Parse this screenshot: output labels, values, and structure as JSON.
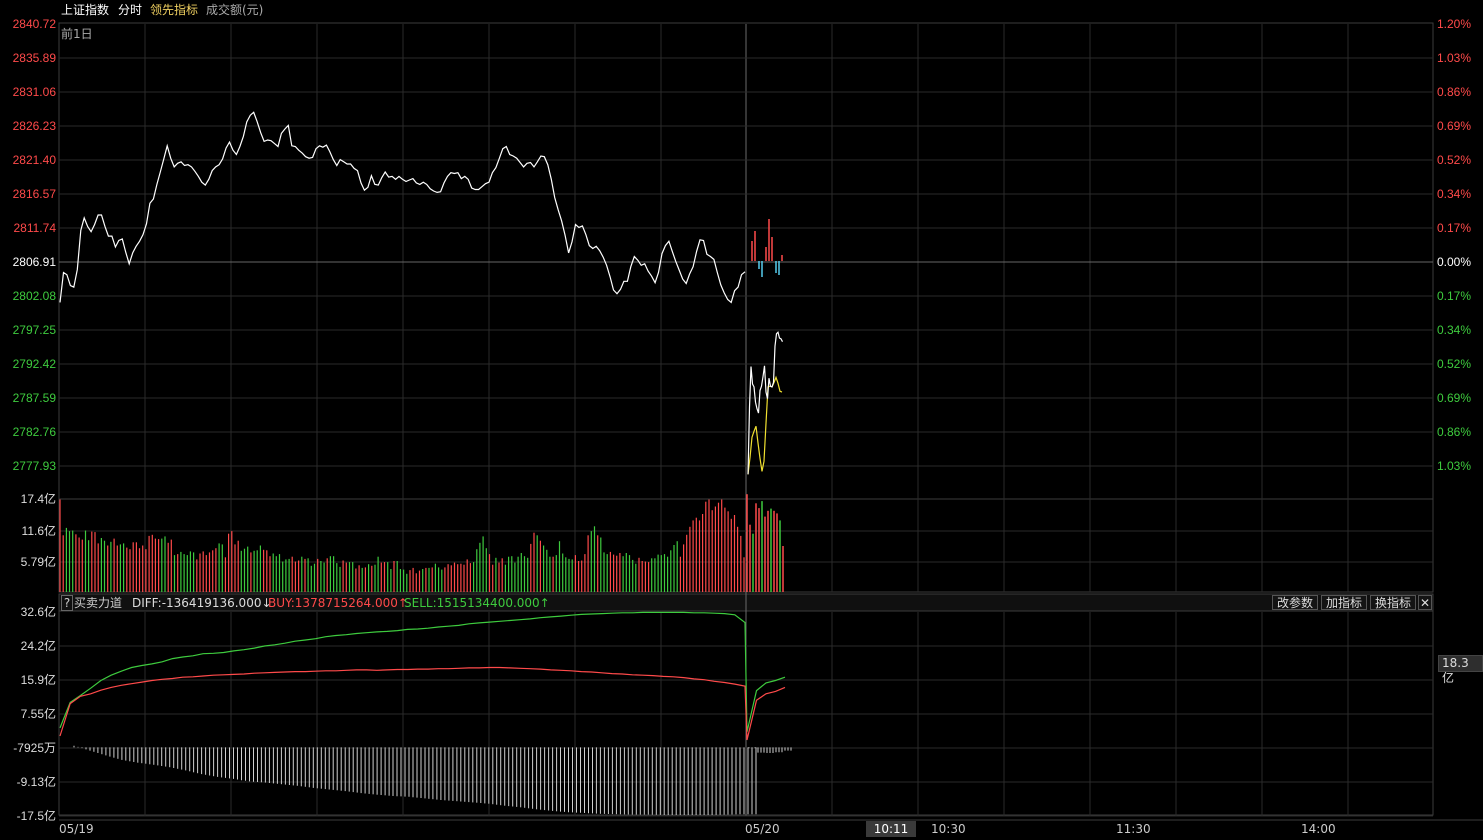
{
  "header": {
    "index_name": "上证指数",
    "tab_timeshare": "分时",
    "tab_leading": "领先指标",
    "tab_turnover": "成交额(元)",
    "prev_day": "前1日"
  },
  "colors": {
    "up": "#ff4a4a",
    "down": "#3ecb3e",
    "price_line": "#ffffff",
    "avg_line": "#f0e030",
    "grid": "#2a2a2a"
  },
  "price_axis": {
    "left": [
      "2840.72",
      "2835.89",
      "2831.06",
      "2826.23",
      "2821.40",
      "2816.57",
      "2811.74",
      "2806.91",
      "2802.08",
      "2797.25",
      "2792.42",
      "2787.59",
      "2782.76",
      "2777.93"
    ],
    "right": [
      "1.20%",
      "1.03%",
      "0.86%",
      "0.69%",
      "0.52%",
      "0.34%",
      "0.17%",
      "0.00%",
      "0.17%",
      "0.34%",
      "0.52%",
      "0.69%",
      "0.86%",
      "1.03%"
    ],
    "pre_close": 2806.91
  },
  "volume_axis": [
    "17.4亿",
    "11.6亿",
    "5.79亿"
  ],
  "indicator": {
    "help": "?",
    "name": "买卖力道",
    "diff": "DIFF:-136419136.000↓",
    "buy": "BUY:1378715264.000↑",
    "sell": "SELL:1515134400.000↑",
    "axis": [
      "32.6亿",
      "24.2亿",
      "15.9亿",
      "7.55亿",
      "-7925万",
      "-9.13亿",
      "-17.5亿"
    ],
    "right_value": "18.3亿",
    "btn_params": "改参数",
    "btn_add": "加指标",
    "btn_switch": "换指标",
    "btn_close": "✕"
  },
  "time_axis": {
    "day1": "05/19",
    "day2": "05/20",
    "cursor": "10:11",
    "t1": "10:30",
    "t2": "11:30",
    "t3": "14:00"
  },
  "chart_data": [
    {
      "type": "line",
      "title": "上证指数",
      "ylim": [
        2775.51,
        2840.72
      ],
      "series": [
        {
          "name": "",
          "values": [
            2802.5,
            2806.6,
            2806.3,
            2804.8,
            2804.6,
            2807.0,
            2812.4,
            2814.1,
            2812.9,
            2812.2,
            2813.2,
            2814.5,
            2814.5,
            2812.9,
            2811.6,
            2811.6,
            2810.1,
            2811.0,
            2811.2,
            2809.4,
            2807.8,
            2809.3,
            2810.2,
            2810.9,
            2811.8,
            2813.3,
            2816.1,
            2816.7,
            2818.7,
            2820.4,
            2822.2,
            2824.0,
            2822.3,
            2821.1,
            2821.6,
            2821.8,
            2821.3,
            2821.4,
            2821.1,
            2820.5,
            2819.8,
            2819.0,
            2818.6,
            2819.4,
            2820.6,
            2821.1,
            2821.4,
            2822.2,
            2823.7,
            2824.5,
            2823.4,
            2822.8,
            2823.9,
            2825.3,
            2827.3,
            2828.2,
            2828.6,
            2827.3,
            2825.8,
            2824.6,
            2824.8,
            2824.7,
            2824.3,
            2823.9,
            2825.7,
            2826.3,
            2826.8,
            2824.0,
            2823.9,
            2823.4,
            2823.0,
            2822.5,
            2822.3,
            2822.4,
            2823.6,
            2824.0,
            2823.8,
            2824.1,
            2823.2,
            2822.1,
            2821.3,
            2822.1,
            2821.8,
            2821.5,
            2821.5,
            2820.9,
            2820.6,
            2818.9,
            2817.9,
            2818.3,
            2819.9,
            2818.7,
            2818.6,
            2819.6,
            2820.4,
            2819.7,
            2819.8,
            2819.4,
            2819.8,
            2819.4,
            2819.1,
            2819.3,
            2819.5,
            2818.9,
            2818.7,
            2819.0,
            2818.7,
            2818.1,
            2817.8,
            2817.6,
            2817.7,
            2818.9,
            2819.8,
            2820.3,
            2820.2,
            2820.3,
            2819.5,
            2819.8,
            2819.4,
            2818.2,
            2818.0,
            2818.0,
            2818.4,
            2818.8,
            2819.0,
            2820.3,
            2821.0,
            2822.3,
            2823.6,
            2823.9,
            2822.8,
            2822.6,
            2822.3,
            2821.7,
            2821.1,
            2821.6,
            2821.7,
            2821.1,
            2821.8,
            2822.6,
            2822.5,
            2821.4,
            2819.4,
            2816.9,
            2815.2,
            2813.7,
            2811.7,
            2809.3,
            2810.8,
            2813.2,
            2812.8,
            2813.0,
            2811.8,
            2810.3,
            2809.9,
            2810.2,
            2809.6,
            2808.7,
            2807.6,
            2806.0,
            2804.2,
            2803.7,
            2804.3,
            2805.4,
            2805.4,
            2807.4,
            2808.8,
            2808.3,
            2807.6,
            2807.8,
            2806.8,
            2806.1,
            2805.2,
            2806.6,
            2809.2,
            2810.3,
            2810.9,
            2809.5,
            2808.1,
            2806.9,
            2805.7,
            2805.1,
            2806.4,
            2807.4,
            2809.5,
            2811.1,
            2811.0,
            2809.1,
            2808.8,
            2808.4,
            2806.6,
            2804.9,
            2803.8,
            2802.9,
            2802.5,
            2804.1,
            2804.6,
            2806.3,
            2806.7
          ]
        },
        {
          "name": "",
          "values": [
            2778.9,
            2788.1,
            2793.7,
            2791.3,
            2790.9,
            2788.8,
            2787.9,
            2787.3,
            2790.4,
            2791.0,
            2792.3,
            2793.8,
            2790.2,
            2789.3,
            2792.1,
            2791.0,
            2790.9,
            2791.5,
            2796.5,
            2798.2,
            2798.4,
            2797.6,
            2797.5,
            2797.1
          ]
        },
        {
          "name": "",
          "values": [
            2778.9,
            2781.2,
            2784.0,
            2784.8,
            2785.5,
            2783.2,
            2781.1,
            2779.3,
            2780.7,
            2785.9,
            2790.9,
            2791.0,
            2790.9,
            2791.5,
            2792.2,
            2791.4,
            2790.3,
            2790.2
          ]
        }
      ]
    },
    {
      "type": "bar",
      "title": "成交额(元)",
      "ylim": [
        0,
        17.4
      ],
      "values_yi": [
        17.3,
        10.6,
        12.0,
        11.4,
        11.5,
        10.8,
        10.2,
        9.8,
        11.5,
        9.7,
        11.3,
        11.2,
        9.1,
        10.1,
        9.6,
        8.7,
        9.4,
        10.0,
        8.7,
        8.9,
        9.1,
        8.3,
        8.0,
        9.3,
        9.3,
        8.2,
        8.7,
        8.0,
        10.5,
        10.7,
        10.0,
        9.9,
        10.0,
        10.4,
        9.2,
        9.8,
        6.9,
        7.1,
        7.5,
        7.1,
        6.9,
        7.6,
        7.4,
        6.1,
        7.2,
        7.6,
        6.9,
        7.4,
        7.8,
        8.2,
        9.1,
        8.9,
        6.5,
        10.9,
        11.4,
        8.9,
        9.6,
        7.7,
        8.1,
        8.5,
        7.4,
        7.7,
        7.8,
        8.7,
        7.9,
        7.8,
        6.7,
        7.2,
        6.7,
        7.1,
        5.7,
        6.1,
        6.2,
        6.6,
        5.7,
        5.9,
        6.6,
        6.2,
        6.3,
        4.9,
        5.3,
        6.2,
        5.8,
        5.5,
        6.3,
        6.7,
        6.7,
        5.4,
        4.7,
        5.9,
        5.5,
        5.6,
        5.6,
        4.4,
        5.0,
        4.5,
        4.6,
        5.2,
        4.9,
        5.1,
        6.6,
        5.5,
        5.6,
        5.6,
        4.3,
        5.8,
        5.8,
        4.3,
        4.2,
        3.4,
        4.1,
        4.5,
        3.5,
        4.0,
        4.3,
        4.5,
        4.5,
        4.6,
        5.3,
        4.6,
        4.2,
        4.6,
        5.2,
        5.0,
        5.5,
        5.2,
        5.3,
        5.1,
        6.1,
        5.4,
        5.6,
        8.0,
        9.2,
        10.4,
        8.2,
        7.1,
        5.1,
        6.4,
        5.5,
        6.3,
        5.1,
        6.6,
        6.7,
        5.5,
        6.6,
        7.3,
        6.7,
        6.4,
        9.0,
        11.1,
        10.6,
        9.6,
        8.7,
        7.9,
        6.6,
        6.6,
        6.9,
        9.5,
        7.2,
        6.5,
        6.2,
        6.1,
        6.9,
        5.8,
        5.9,
        7.1,
        10.6,
        11.4,
        12.3,
        10.6,
        10.2,
        7.4,
        7.1,
        7.5,
        7.0,
        6.8,
        7.3,
        6.7,
        7.3,
        6.9,
        6.0,
        5.3,
        6.4,
        5.8,
        5.7,
        5.6,
        6.3,
        6.3,
        7.0,
        6.9,
        7.1,
        6.6,
        7.8,
        8.8,
        9.5,
        6.6,
        8.9,
        10.7,
        12.2,
        13.4,
        13.9,
        13.4,
        14.6,
        16.9,
        17.3,
        15.3,
        16.0,
        16.7,
        17.3,
        15.8,
        15.1,
        13.7,
        14.4,
        12.2,
        10.5,
        6.5
      ],
      "values_day2_yi": [
        18.3,
        12.6,
        10.9,
        16.6,
        15.7,
        17.0,
        14.1,
        15.2,
        15.6,
        15.2,
        14.7,
        13.4,
        8.6
      ]
    },
    {
      "type": "line",
      "title": "买卖力道",
      "ylim": [
        -17.5,
        32.6
      ],
      "series": [
        {
          "name": "SELL",
          "values": [
            4.0,
            10.3,
            12.0,
            13.8,
            15.7,
            17.0,
            18.0,
            18.9,
            19.4,
            19.8,
            20.3,
            21.1,
            21.5,
            21.8,
            22.3,
            22.4,
            22.6,
            23.0,
            23.3,
            23.7,
            24.2,
            24.5,
            24.9,
            25.4,
            25.7,
            26.0,
            26.5,
            26.8,
            27.0,
            27.3,
            27.5,
            27.7,
            27.8,
            28.0,
            28.3,
            28.4,
            28.6,
            28.9,
            29.1,
            29.3,
            29.7,
            29.9,
            30.1,
            30.3,
            30.5,
            30.7,
            30.9,
            31.2,
            31.4,
            31.6,
            31.8,
            32.0,
            32.1,
            32.2,
            32.3,
            32.4,
            32.4,
            32.5,
            32.5,
            32.5,
            32.5,
            32.5,
            32.4,
            32.4,
            32.3,
            32.2,
            31.9,
            30.0,
            3.0,
            13.2,
            15.1,
            15.7,
            16.5
          ]
        },
        {
          "name": "BUY",
          "values": [
            2.0,
            10.0,
            11.8,
            12.4,
            13.3,
            14.0,
            14.5,
            14.9,
            15.3,
            15.7,
            16.0,
            16.2,
            16.5,
            16.6,
            16.8,
            17.0,
            17.1,
            17.2,
            17.3,
            17.5,
            17.6,
            17.7,
            17.8,
            17.9,
            17.9,
            18.0,
            18.1,
            18.1,
            18.2,
            18.3,
            18.3,
            18.2,
            18.3,
            18.4,
            18.4,
            18.5,
            18.5,
            18.6,
            18.6,
            18.7,
            18.8,
            18.8,
            18.9,
            18.9,
            18.8,
            18.7,
            18.6,
            18.5,
            18.3,
            18.2,
            18.1,
            17.9,
            17.8,
            17.6,
            17.4,
            17.3,
            17.1,
            17.0,
            16.9,
            16.7,
            16.6,
            16.4,
            16.1,
            15.9,
            15.5,
            15.2,
            14.8,
            14.3,
            1.0,
            10.8,
            12.4,
            13.0,
            14.0
          ]
        },
        {
          "name": "DIFF",
          "values": [
            -0.4,
            -1.6,
            -2.8,
            -3.9,
            -4.6,
            -5.1,
            -5.7,
            -6.5,
            -7.4,
            -8.1,
            -8.6,
            -9.2,
            -9.5,
            -9.9,
            -10.3,
            -10.8,
            -11.2,
            -11.6,
            -12.1,
            -12.5,
            -12.8,
            -13.0,
            -13.4,
            -13.8,
            -14.1,
            -14.4,
            -14.7,
            -15.2,
            -15.6,
            -16.1,
            -16.5,
            -16.8,
            -17.0,
            -17.2,
            -17.3,
            -17.4,
            -17.4,
            -17.5,
            -17.5,
            -17.5,
            -17.5,
            -17.4,
            -17.3,
            -1.0,
            -2.1,
            -2.2,
            -2.0,
            -1.6
          ]
        }
      ]
    }
  ]
}
